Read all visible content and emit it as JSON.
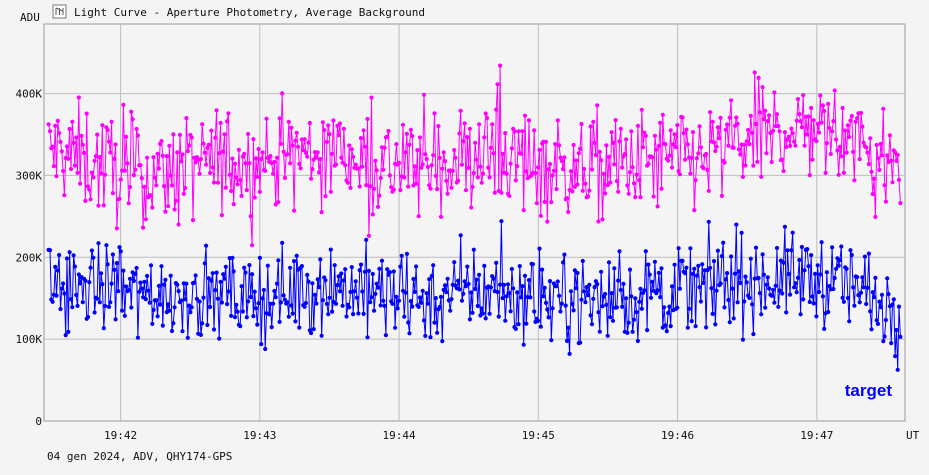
{
  "chart_data": {
    "type": "line",
    "title": "Light Curve - Aperture Photometry, Average Background",
    "ylabel": "ADU",
    "xlabel": "UT",
    "footer": "04 gen 2024, ADV, QHY174-GPS",
    "ylim": [
      0,
      485000
    ],
    "xlim": [
      "19:41:27",
      "19:47:38"
    ],
    "y_ticks": [
      {
        "value": 0,
        "label": "0"
      },
      {
        "value": 100000,
        "label": "100K"
      },
      {
        "value": 200000,
        "label": "200K"
      },
      {
        "value": 300000,
        "label": "300K"
      },
      {
        "value": 400000,
        "label": "400K"
      }
    ],
    "x_ticks": [
      {
        "value": "19:42",
        "label": "19:42"
      },
      {
        "value": "19:43",
        "label": "19:43"
      },
      {
        "value": "19:44",
        "label": "19:44"
      },
      {
        "value": "19:45",
        "label": "19:45"
      },
      {
        "value": "19:46",
        "label": "19:46"
      },
      {
        "value": "19:47",
        "label": "19:47"
      }
    ],
    "grid": true,
    "legend_position": "bottom-right",
    "series": [
      {
        "color": "#ff00ff",
        "x": [
          "19:41:30",
          "19:41:45",
          "19:42:00",
          "19:42:15",
          "19:42:30",
          "19:42:45",
          "19:43:00",
          "19:43:15",
          "19:43:30",
          "19:43:45",
          "19:44:00",
          "19:44:15",
          "19:44:30",
          "19:44:45",
          "19:45:00",
          "19:45:15",
          "19:45:30",
          "19:45:45",
          "19:46:00",
          "19:46:15",
          "19:46:30",
          "19:46:45",
          "19:47:00",
          "19:47:15",
          "19:47:30"
        ],
        "y": [
          330000,
          320000,
          305000,
          300000,
          310000,
          320000,
          315000,
          325000,
          330000,
          320000,
          310000,
          315000,
          320000,
          325000,
          315000,
          305000,
          310000,
          315000,
          320000,
          325000,
          345000,
          355000,
          360000,
          345000,
          310000
        ]
      },
      {
        "name": "target",
        "color": "#0000ff",
        "x": [
          "19:41:30",
          "19:41:45",
          "19:42:00",
          "19:42:15",
          "19:42:30",
          "19:42:45",
          "19:43:00",
          "19:43:15",
          "19:43:30",
          "19:43:45",
          "19:44:00",
          "19:44:15",
          "19:44:30",
          "19:44:45",
          "19:45:00",
          "19:45:15",
          "19:45:30",
          "19:45:45",
          "19:46:00",
          "19:46:15",
          "19:46:30",
          "19:46:45",
          "19:47:00",
          "19:47:15",
          "19:47:30"
        ],
        "y": [
          165000,
          165000,
          160000,
          155000,
          155000,
          150000,
          150000,
          160000,
          165000,
          160000,
          150000,
          150000,
          160000,
          160000,
          150000,
          150000,
          150000,
          150000,
          160000,
          165000,
          170000,
          175000,
          175000,
          165000,
          145000
        ]
      }
    ]
  }
}
